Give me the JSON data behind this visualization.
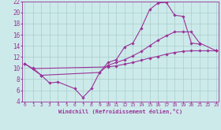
{
  "xlabel": "Windchill (Refroidissement éolien,°C)",
  "background_color": "#cdeaea",
  "grid_color": "#aacccc",
  "line_color": "#993399",
  "xlim": [
    0,
    23
  ],
  "ylim": [
    4,
    22
  ],
  "xticks": [
    0,
    1,
    2,
    3,
    4,
    5,
    6,
    7,
    8,
    9,
    10,
    11,
    12,
    13,
    14,
    15,
    16,
    17,
    18,
    19,
    20,
    21,
    22,
    23
  ],
  "yticks": [
    4,
    6,
    8,
    10,
    12,
    14,
    16,
    18,
    20,
    22
  ],
  "series": [
    {
      "x": [
        0,
        1,
        10,
        11,
        12,
        13,
        14,
        15,
        16,
        17,
        18,
        19,
        20,
        21,
        22,
        23
      ],
      "y": [
        10.8,
        9.9,
        10.2,
        10.4,
        10.7,
        11.0,
        11.4,
        11.8,
        12.1,
        12.5,
        12.8,
        13.0,
        13.1,
        13.1,
        13.1,
        13.1
      ]
    },
    {
      "x": [
        0,
        2,
        3,
        4,
        6,
        7,
        8,
        9,
        10,
        11,
        12,
        13,
        14,
        15,
        16,
        17,
        18,
        19,
        20,
        21,
        22,
        23
      ],
      "y": [
        10.8,
        8.7,
        7.3,
        7.5,
        6.3,
        4.7,
        6.3,
        9.2,
        11.0,
        11.5,
        13.8,
        14.5,
        17.2,
        20.5,
        21.7,
        21.8,
        19.5,
        19.3,
        14.5,
        14.3,
        null,
        13.1
      ]
    },
    {
      "comment": "diagonal line from ~x=2,y=8.7 rising to x=20,y=16.5 then x=21,y=14.5 then x=23,y=13",
      "x": [
        1,
        2,
        9,
        10,
        11,
        12,
        13,
        14,
        15,
        16,
        17,
        18,
        19,
        20,
        21,
        23
      ],
      "y": [
        10.0,
        8.7,
        9.2,
        10.5,
        11.0,
        11.5,
        12.2,
        13.0,
        14.0,
        15.0,
        15.8,
        16.5,
        16.5,
        16.5,
        14.5,
        13.1
      ]
    }
  ]
}
